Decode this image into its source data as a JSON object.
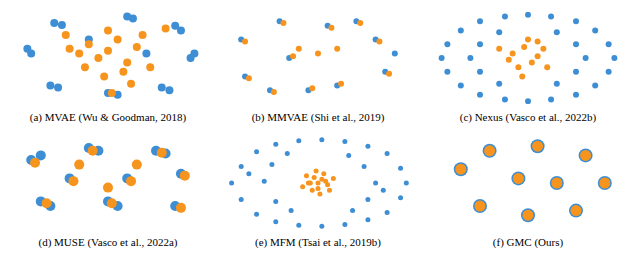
{
  "chart_data": [
    {
      "type": "scatter",
      "title": "(a) MVAE (Wu & Goodman, 2018)",
      "xlim": [
        0,
        100
      ],
      "ylim": [
        0,
        100
      ],
      "tick_labels": false,
      "series": [
        {
          "color": "#3d8ed4",
          "x": [
            8,
            10,
            22,
            26,
            60,
            63,
            85,
            88,
            95,
            93,
            20,
            24,
            50,
            55,
            78,
            82,
            70,
            40
          ],
          "y": [
            60,
            55,
            88,
            86,
            95,
            93,
            85,
            80,
            55,
            50,
            20,
            18,
            12,
            10,
            18,
            15,
            55,
            70
          ]
        },
        {
          "color": "#f7941d",
          "x": [
            30,
            35,
            40,
            45,
            50,
            55,
            60,
            65,
            38,
            48,
            58,
            68,
            50,
            28,
            72,
            62,
            52,
            80
          ],
          "y": [
            60,
            55,
            65,
            50,
            58,
            70,
            45,
            62,
            40,
            30,
            35,
            75,
            80,
            75,
            40,
            22,
            12,
            82
          ]
        }
      ]
    },
    {
      "type": "scatter",
      "title": "(b) MMVAE (Shi et al., 2019)",
      "xlim": [
        0,
        100
      ],
      "ylim": [
        0,
        100
      ],
      "tick_labels": false,
      "series": [
        {
          "color": "#3d8ed4",
          "x": [
            10,
            12,
            30,
            35,
            55,
            60,
            80,
            85,
            90,
            45,
            25,
            70
          ],
          "y": [
            70,
            30,
            90,
            50,
            85,
            20,
            70,
            35,
            55,
            15,
            15,
            90
          ]
        },
        {
          "color": "#f7941d",
          "x": [
            12,
            14,
            32,
            37,
            57,
            62,
            82,
            87,
            50,
            47,
            27,
            72,
            40,
            60
          ],
          "y": [
            68,
            28,
            88,
            52,
            83,
            22,
            68,
            33,
            55,
            17,
            13,
            88,
            60,
            60
          ]
        }
      ]
    },
    {
      "type": "scatter",
      "title": "(c) Nexus (Vasco et al., 2022b)",
      "xlim": [
        0,
        100
      ],
      "ylim": [
        0,
        100
      ],
      "tick_labels": false,
      "series": [
        {
          "color": "#3d8ed4",
          "x": [
            5,
            8,
            8,
            15,
            15,
            25,
            25,
            38,
            38,
            50,
            50,
            62,
            62,
            75,
            75,
            85,
            85,
            92,
            92,
            95,
            20,
            25,
            25,
            35,
            35,
            65,
            65,
            75,
            75,
            80
          ],
          "y": [
            50,
            65,
            35,
            80,
            20,
            90,
            10,
            95,
            5,
            97,
            3,
            95,
            5,
            90,
            10,
            80,
            20,
            65,
            35,
            50,
            50,
            65,
            35,
            78,
            22,
            78,
            22,
            65,
            35,
            50
          ]
        },
        {
          "color": "#f7941d",
          "x": [
            42,
            48,
            55,
            45,
            52,
            58,
            40,
            50,
            60,
            47,
            55,
            35
          ],
          "y": [
            55,
            62,
            52,
            40,
            45,
            60,
            48,
            70,
            40,
            30,
            68,
            60
          ]
        }
      ]
    },
    {
      "type": "scatter",
      "title": "(d) MUSE (Vasco et al., 2022a)",
      "xlim": [
        0,
        100
      ],
      "ylim": [
        0,
        100
      ],
      "tick_labels": false,
      "series": [
        {
          "color": "#3d8ed4",
          "x": [
            10,
            15,
            40,
            45,
            75,
            80,
            88,
            15,
            20,
            50,
            55,
            85,
            60,
            30
          ],
          "y": [
            75,
            80,
            88,
            85,
            85,
            82,
            60,
            30,
            25,
            30,
            25,
            25,
            55,
            55
          ]
        },
        {
          "color": "#f7941d",
          "x": [
            12,
            42,
            78,
            90,
            18,
            52,
            88,
            62,
            32,
            35,
            65,
            50
          ],
          "y": [
            72,
            85,
            83,
            58,
            28,
            28,
            23,
            52,
            52,
            70,
            70,
            45
          ]
        }
      ]
    },
    {
      "type": "scatter",
      "title": "(e) MFM (Tsai et al., 2019b)",
      "xlim": [
        0,
        100
      ],
      "ylim": [
        0,
        100
      ],
      "tick_labels": false,
      "series": [
        {
          "color": "#3d8ed4",
          "x": [
            5,
            10,
            10,
            18,
            18,
            28,
            28,
            40,
            40,
            52,
            52,
            64,
            64,
            76,
            76,
            86,
            86,
            93,
            93,
            96,
            22,
            26,
            28,
            34,
            36,
            66,
            68,
            74,
            76,
            80,
            14,
            84
          ],
          "y": [
            50,
            68,
            32,
            84,
            16,
            92,
            8,
            96,
            4,
            97,
            3,
            95,
            5,
            90,
            10,
            82,
            18,
            66,
            34,
            50,
            52,
            70,
            30,
            82,
            20,
            80,
            20,
            68,
            32,
            50,
            60,
            42
          ]
        },
        {
          "color": "#f7941d",
          "x": [
            45,
            48,
            52,
            55,
            50,
            47,
            53,
            44,
            56,
            49,
            51,
            46,
            54,
            42,
            58,
            50
          ],
          "y": [
            50,
            56,
            54,
            48,
            44,
            42,
            60,
            58,
            42,
            63,
            38,
            50,
            52,
            46,
            55,
            50
          ]
        }
      ]
    },
    {
      "type": "scatter",
      "title": "(f) GMC (Ours)",
      "xlim": [
        0,
        100
      ],
      "ylim": [
        0,
        100
      ],
      "tick_labels": false,
      "series": [
        {
          "color": "#3d8ed4",
          "x": [
            15,
            30,
            55,
            80,
            90,
            75,
            50,
            25,
            45,
            65
          ],
          "y": [
            65,
            85,
            90,
            80,
            50,
            20,
            15,
            25,
            55,
            50
          ]
        },
        {
          "color": "#f7941d",
          "x": [
            15,
            30,
            55,
            80,
            90,
            75,
            50,
            25,
            45,
            65
          ],
          "y": [
            65,
            85,
            90,
            80,
            50,
            20,
            15,
            25,
            55,
            50
          ]
        }
      ]
    }
  ]
}
